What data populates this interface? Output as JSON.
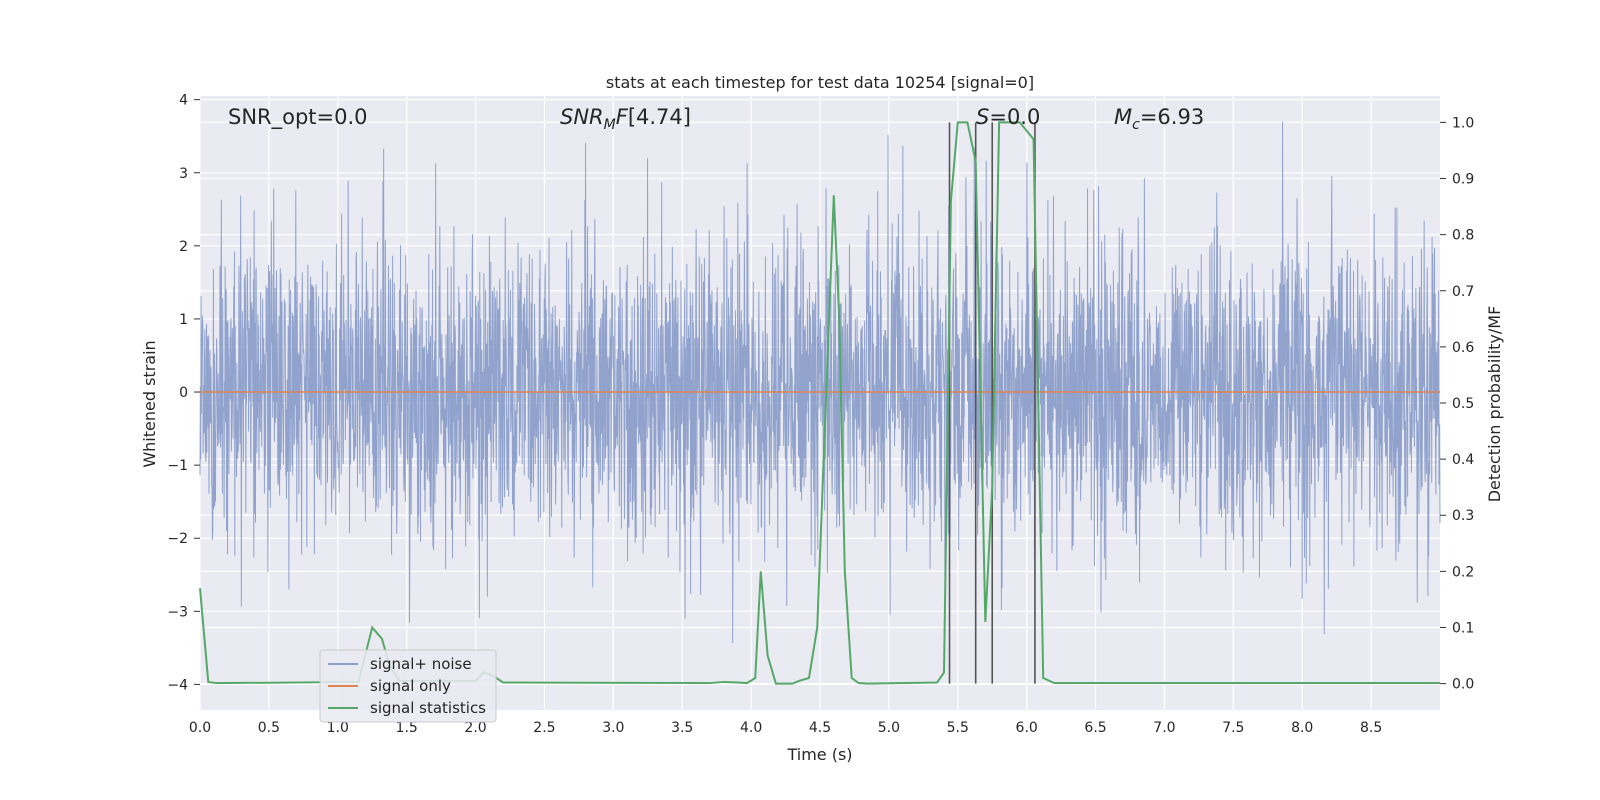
{
  "chart_data": {
    "type": "line",
    "title": "stats at each timestep for test data 10254 [signal=0]",
    "xlabel": "Time (s)",
    "ylabel_left": "Whitened strain",
    "ylabel_right": "Detection probability/MF",
    "xlim": [
      0,
      9.0
    ],
    "ylim_left": [
      -4.35,
      4.05
    ],
    "ylim_right": [
      -0.047,
      1.047
    ],
    "x_ticks": [
      "0.0",
      "0.5",
      "1.0",
      "1.5",
      "2.0",
      "2.5",
      "3.0",
      "3.5",
      "4.0",
      "4.5",
      "5.0",
      "5.5",
      "6.0",
      "6.5",
      "7.0",
      "7.5",
      "8.0",
      "8.5"
    ],
    "y_ticks_left": [
      "4",
      "3",
      "2",
      "1",
      "0",
      "−1",
      "−2",
      "−3",
      "−4"
    ],
    "y_ticks_right": [
      "1.0",
      "0.9",
      "0.8",
      "0.7",
      "0.6",
      "0.5",
      "0.4",
      "0.3",
      "0.2",
      "0.1",
      "0.0"
    ],
    "grid": true,
    "legend_position": "lower-left",
    "annotations": {
      "snr_opt": "SNR_opt=0.0",
      "snr_mf": "[4.74]",
      "s": "=0.0",
      "mc": "=6.93"
    },
    "colors": {
      "noise": "#8c9fca",
      "signal_only": "#dd8452",
      "statistics": "#55a868",
      "vlines": "#555555",
      "bg": "#eaeaf2"
    },
    "series": [
      {
        "name": "signal+ noise",
        "axis": "left",
        "style": "dense-noise",
        "values": {
          "envelope_std": 1.05,
          "peak_abs": 3.7
        }
      },
      {
        "name": "signal only",
        "axis": "left",
        "x": [
          0,
          9.0
        ],
        "y": [
          0,
          0
        ]
      },
      {
        "name": "signal statistics",
        "axis": "right",
        "x": [
          0.0,
          0.06,
          0.12,
          0.18,
          1.15,
          1.25,
          1.32,
          1.38,
          1.45,
          2.0,
          2.06,
          2.12,
          2.2,
          3.7,
          3.8,
          3.9,
          3.97,
          4.03,
          4.07,
          4.12,
          4.18,
          4.24,
          4.3,
          4.35,
          4.42,
          4.48,
          4.55,
          4.6,
          4.64,
          4.68,
          4.73,
          4.78,
          4.85,
          5.35,
          5.4,
          5.45,
          5.5,
          5.57,
          5.63,
          5.7,
          5.75,
          5.8,
          5.88,
          5.95,
          6.05,
          6.12,
          6.2,
          9.0
        ],
        "y": [
          0.17,
          0.003,
          0.001,
          0.001,
          0.003,
          0.1,
          0.08,
          0.03,
          0.005,
          0.005,
          0.02,
          0.015,
          0.002,
          0.001,
          0.003,
          0.002,
          0.001,
          0.01,
          0.2,
          0.05,
          0.0,
          0.0,
          0.0,
          0.005,
          0.01,
          0.1,
          0.55,
          0.87,
          0.65,
          0.2,
          0.01,
          0.001,
          0.0,
          0.002,
          0.02,
          0.86,
          1.0,
          1.0,
          0.93,
          0.11,
          0.35,
          1.0,
          1.0,
          1.0,
          0.97,
          0.01,
          0.001,
          0.001
        ]
      }
    ],
    "vlines": [
      5.44,
      5.63,
      5.75,
      6.06
    ]
  }
}
